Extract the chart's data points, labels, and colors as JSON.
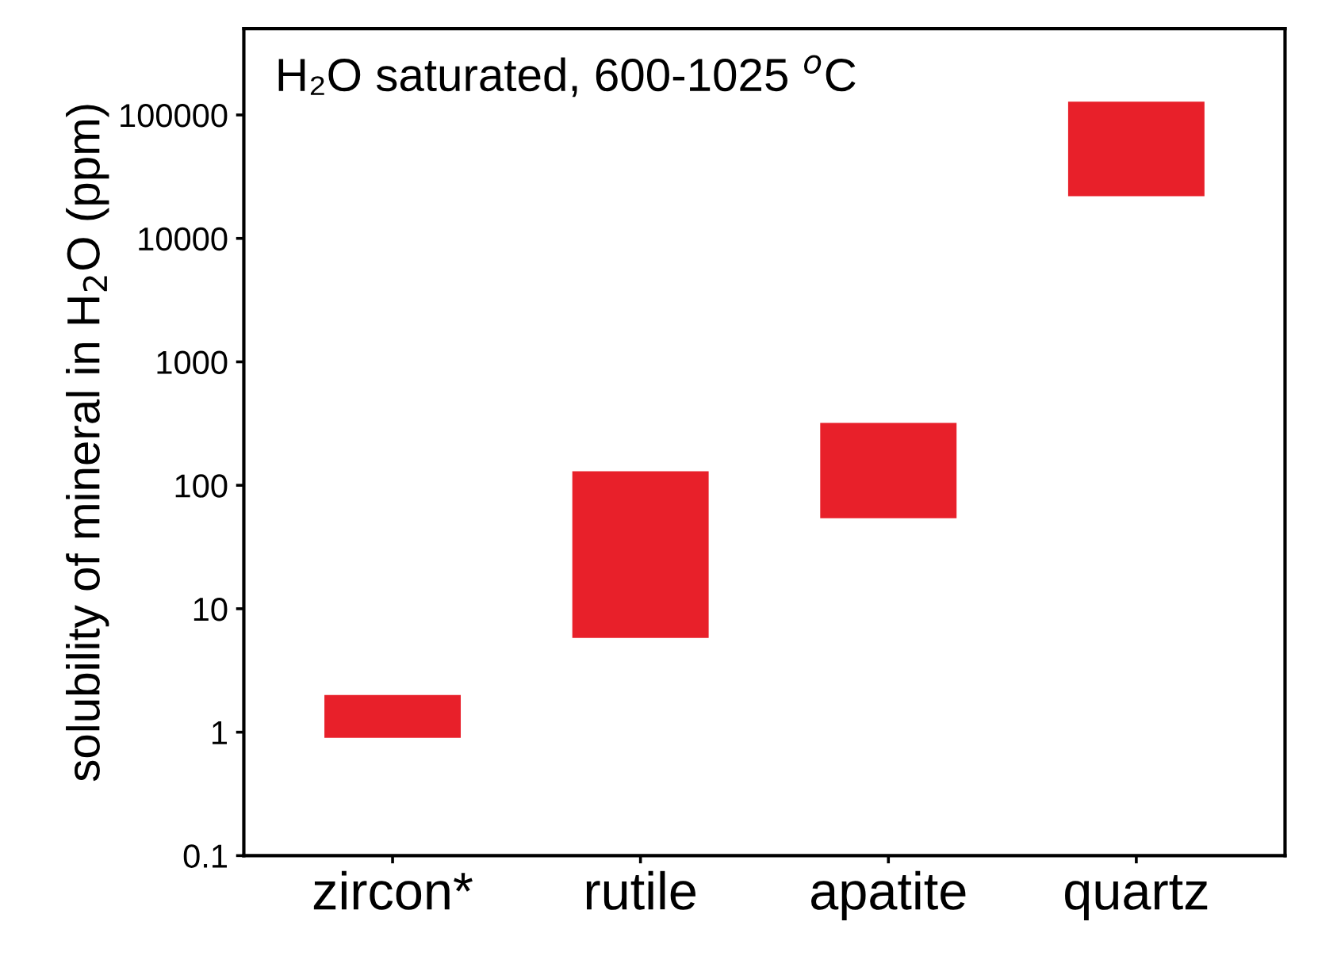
{
  "chart_data": {
    "type": "bar",
    "title": "H₂O saturated, 600-1025 $^{o}$C",
    "ylabel": "solubility of mineral in H$_{2}$O (ppm)",
    "categories": [
      "zircon*",
      "rutile",
      "apatite",
      "quartz"
    ],
    "base": [
      0.9,
      5.8,
      54,
      22000
    ],
    "values": [
      1.1,
      124.2,
      266,
      106000
    ],
    "color": "#e8202a",
    "log": "y",
    "ylim": [
      0.1,
      500000
    ],
    "yticks": [
      0.1,
      1,
      10,
      100,
      1000,
      10000,
      100000
    ],
    "grid": false
  }
}
